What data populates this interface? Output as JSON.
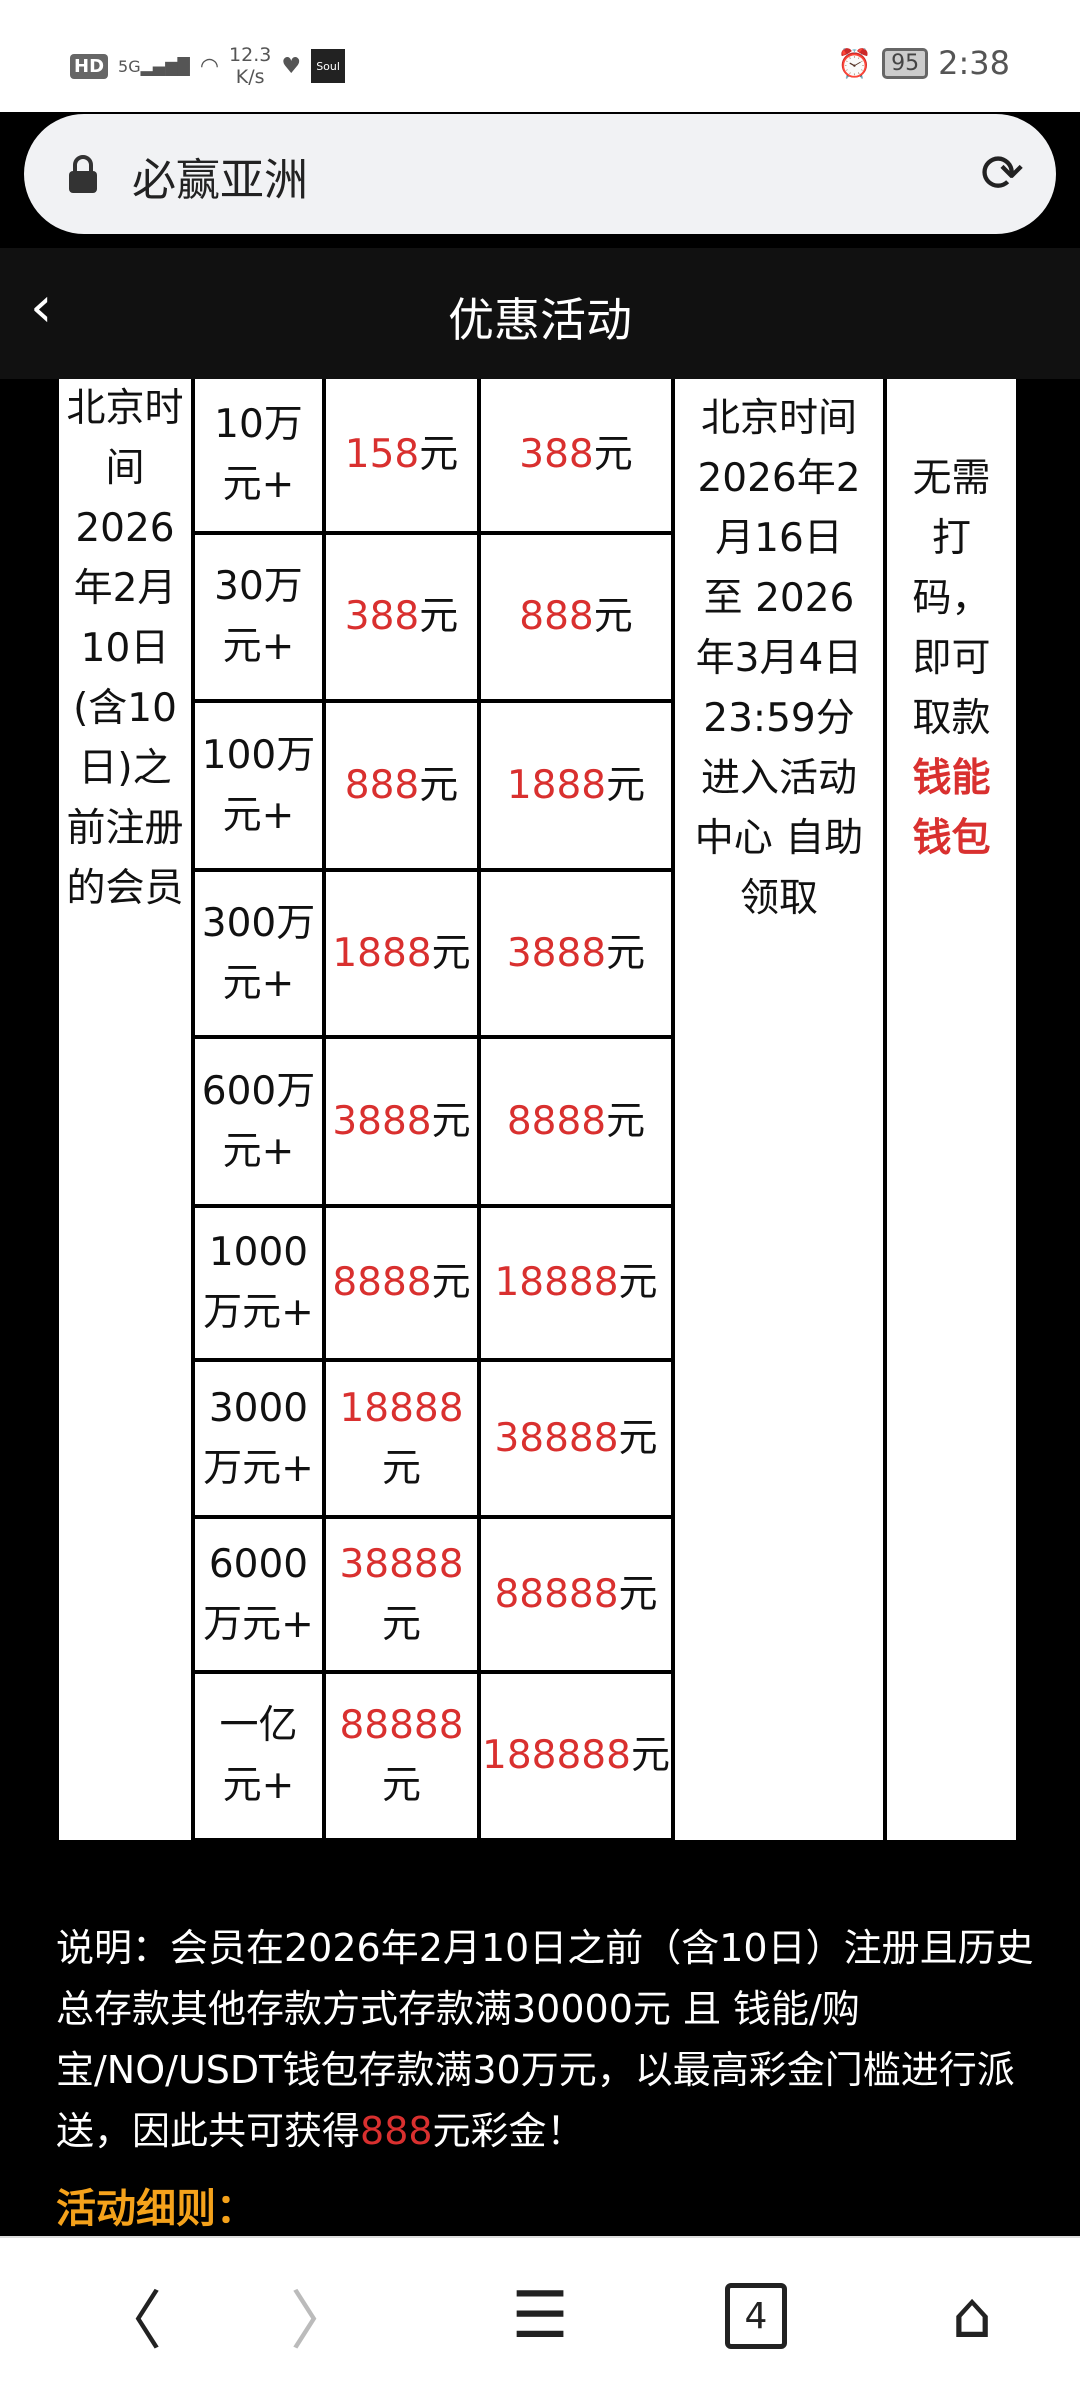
{
  "status_bar": {
    "hd": "HD",
    "network": "5G",
    "speed_value": "12.3",
    "speed_unit": "K/s",
    "soul_app": "Soul",
    "battery": "95",
    "time": "2:38"
  },
  "address_bar": {
    "title": "必赢亚洲",
    "icons": [
      "lock-icon",
      "reload-icon"
    ]
  },
  "header": {
    "title": "优惠活动",
    "back_icon": "chevron-left-icon"
  },
  "table": {
    "register_condition": "北京时间2026年2月10日(含10日)之前注册的会员",
    "rows": [
      {
        "tier": "10万元+",
        "bonus_a": "158",
        "bonus_b": "388"
      },
      {
        "tier": "30万元+",
        "bonus_a": "388",
        "bonus_b": "888"
      },
      {
        "tier": "100万元+",
        "bonus_a": "888",
        "bonus_b": "1888"
      },
      {
        "tier": "300万元+",
        "bonus_a": "1888",
        "bonus_b": "3888"
      },
      {
        "tier": "600万元+",
        "bonus_a": "3888",
        "bonus_b": "8888"
      },
      {
        "tier": "1000万元+",
        "bonus_a": "8888",
        "bonus_b": "18888"
      },
      {
        "tier": "3000万元+",
        "bonus_a": "18888",
        "bonus_b": "38888"
      },
      {
        "tier": "6000万元+",
        "bonus_a": "38888",
        "bonus_b": "88888"
      },
      {
        "tier": "一亿元+",
        "bonus_a": "88888",
        "bonus_b": "188888"
      }
    ],
    "unit": "元",
    "period": {
      "line1": "北京时间",
      "line2": "2026年2月16日",
      "line3": "至 2026年3月4日 23:59分",
      "line4": "进入活动中心 自助领取"
    },
    "withdraw": {
      "text": "无需打码，即可取款",
      "wallet": "钱能钱包"
    }
  },
  "note": {
    "prefix": "说明：会员在2026年2月10日之前（含10日）注册且历史总存款其他存款方式存款满30000元 且 钱能/购宝/NO/USDT钱包存款满30万元，以最高彩金门槛进行派送，因此共可获得",
    "amount": "888",
    "suffix": "元彩金！"
  },
  "rules_heading": "活动细则：",
  "bottom_nav": {
    "tabs_count": "4",
    "icons": [
      "back-icon",
      "forward-icon",
      "menu-icon",
      "tabs-icon",
      "home-icon"
    ]
  },
  "colors": {
    "accent_red": "#d9302f",
    "heading_orange": "#f5a21b",
    "header_bg": "#111111"
  }
}
